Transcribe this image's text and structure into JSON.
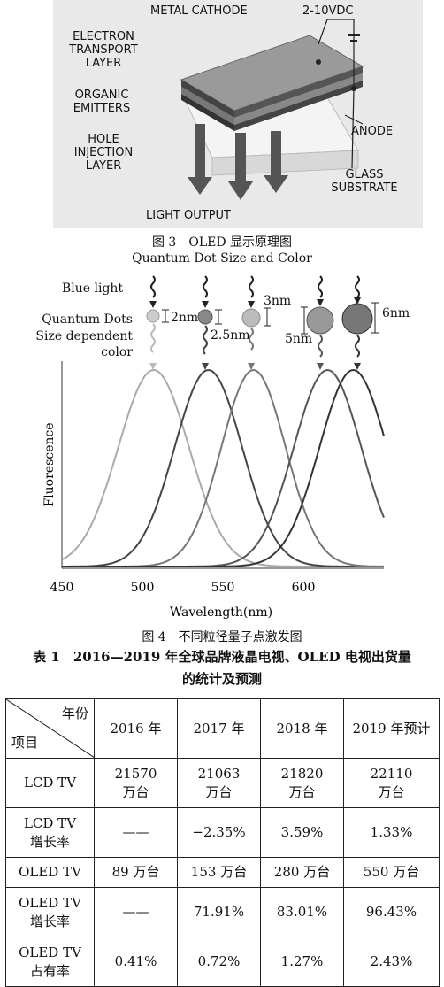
{
  "figure3": {
    "labels": {
      "metal_cathode": "METAL CATHODE",
      "voltage": "2-10VDC",
      "electron_transport": "ELECTRON TRANSPORT LAYER",
      "organic_emitters": "ORGANIC EMITTERS",
      "hole_injection": "HOLE INJECTION LAYER",
      "anode": "ANODE",
      "glass_substrate": "GLASS SUBSTRATE",
      "light_output": "LIGHT OUTPUT"
    },
    "caption": "图 3　OLED 显示原理图"
  },
  "figure4": {
    "title": "Quantum Dot Size and Color",
    "blue_light": "Blue light",
    "quantum_dots": "Quantum Dots",
    "size_dependent_1": "Size dependent",
    "size_dependent_2": "color",
    "sizes": [
      "2nm",
      "2.5nm",
      "3nm",
      "5nm",
      "6nm"
    ],
    "caption": "图 4　不同粒径量子点激发图"
  },
  "chart_data": {
    "type": "line",
    "xlabel": "Wavelength(nm)",
    "ylabel": "Fluorescence",
    "xlim": [
      450,
      650
    ],
    "x_ticks": [
      "450",
      "500",
      "550",
      "600"
    ],
    "series": [
      {
        "label": "2nm",
        "peak": 507,
        "width": 22,
        "color": "#aaaaaa"
      },
      {
        "label": "2.5nm",
        "peak": 541,
        "width": 21,
        "color": "#444444"
      },
      {
        "label": "3nm",
        "peak": 569,
        "width": 20,
        "color": "#777777"
      },
      {
        "label": "5nm",
        "peak": 615,
        "width": 21,
        "color": "#555555"
      },
      {
        "label": "6nm",
        "peak": 631,
        "width": 21,
        "color": "#333333"
      }
    ]
  },
  "table1": {
    "title_line1": "表 1　2016—2019 年全球品牌液晶电视、OLED 电视出货量",
    "title_line2": "的统计及预测",
    "corner_top": "年份",
    "corner_bottom": "项目",
    "years": [
      "2016 年",
      "2017 年",
      "2018 年",
      "2019 年预计"
    ],
    "rows": [
      {
        "name": "LCD TV",
        "name2": "",
        "cells": [
          [
            "21570",
            "万台"
          ],
          [
            "21063",
            "万台"
          ],
          [
            "21820",
            "万台"
          ],
          [
            "22110",
            "万台"
          ]
        ]
      },
      {
        "name": "LCD TV",
        "name2": "增长率",
        "cells": [
          [
            "——"
          ],
          [
            "−2.35%"
          ],
          [
            "3.59%"
          ],
          [
            "1.33%"
          ]
        ]
      },
      {
        "name": "OLED TV",
        "name2": "",
        "cells": [
          [
            "89 万台"
          ],
          [
            "153 万台"
          ],
          [
            "280 万台"
          ],
          [
            "550 万台"
          ]
        ]
      },
      {
        "name": "OLED TV",
        "name2": "增长率",
        "cells": [
          [
            "——"
          ],
          [
            "71.91%"
          ],
          [
            "83.01%"
          ],
          [
            "96.43%"
          ]
        ]
      },
      {
        "name": "OLED TV",
        "name2": "占有率",
        "cells": [
          [
            "0.41%"
          ],
          [
            "0.72%"
          ],
          [
            "1.27%"
          ],
          [
            "2.43%"
          ]
        ]
      }
    ]
  }
}
